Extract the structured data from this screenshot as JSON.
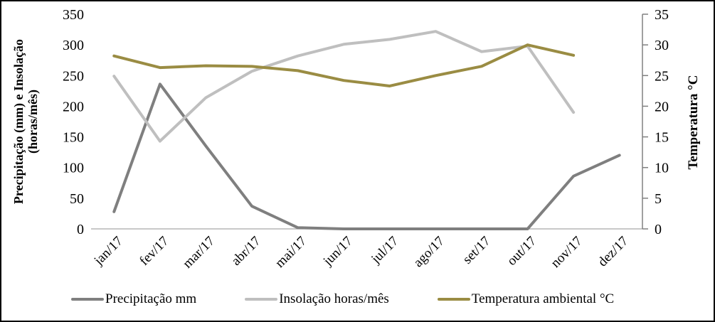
{
  "chart_data": {
    "type": "line",
    "title": "",
    "categories": [
      "jan/17",
      "fev/17",
      "mar/17",
      "abr/17",
      "mai/17",
      "jun/17",
      "jul/17",
      "ago/17",
      "set/17",
      "out/17",
      "nov/17",
      "dez/17"
    ],
    "series": [
      {
        "name": "Precipitação mm",
        "axis": "left",
        "color": "#7F7F7F",
        "values": [
          28,
          236,
          135,
          37,
          2,
          0,
          0,
          0,
          0,
          0,
          86,
          120
        ]
      },
      {
        "name": "Insolação horas/mês",
        "axis": "left",
        "color": "#BFBFBF",
        "values": [
          249,
          143,
          214,
          257,
          282,
          301,
          309,
          322,
          289,
          298,
          190,
          null
        ]
      },
      {
        "name": "Temperatura ambiental °C",
        "axis": "right",
        "color": "#9A8C43",
        "values": [
          28.2,
          26.3,
          26.6,
          26.5,
          25.8,
          24.2,
          23.3,
          25.0,
          26.5,
          30.0,
          28.3,
          null
        ]
      }
    ],
    "left_axis": {
      "label": "Precipitação (mm) e Insolação\n(horas/mês)",
      "min": 0,
      "max": 350,
      "step": 50,
      "tick_labels": [
        "0",
        "50",
        "100",
        "150",
        "200",
        "250",
        "300",
        "350"
      ]
    },
    "right_axis": {
      "label": "Temperatura °C",
      "min": 0,
      "max": 35,
      "step": 5,
      "tick_labels": [
        "0",
        "5",
        "10",
        "15",
        "20",
        "25",
        "30",
        "35"
      ]
    },
    "grid": false,
    "legend_position": "bottom"
  },
  "styles": {
    "background": "#FFFFFF",
    "border_color": "#000000",
    "x_axis_line_color": "#A6A6A6",
    "right_axis_line_color": "#808080",
    "text_color": "#000000"
  }
}
